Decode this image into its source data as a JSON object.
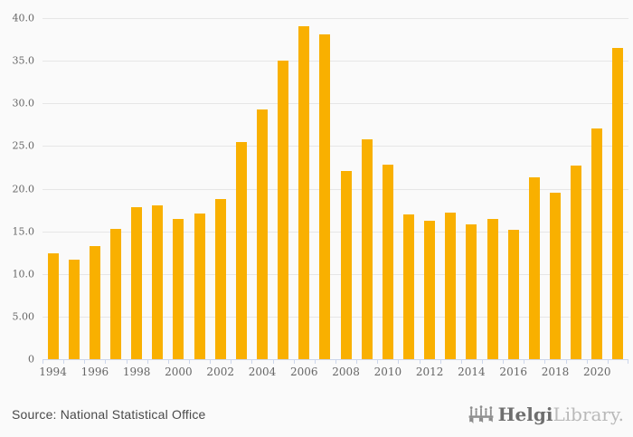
{
  "chart_data": {
    "type": "bar",
    "title": "",
    "xlabel": "",
    "ylabel": "",
    "categories": [
      1994,
      1995,
      1996,
      1997,
      1998,
      1999,
      2000,
      2001,
      2002,
      2003,
      2004,
      2005,
      2006,
      2007,
      2008,
      2009,
      2010,
      2011,
      2012,
      2013,
      2014,
      2015,
      2016,
      2017,
      2018,
      2019,
      2020,
      2021
    ],
    "values": [
      12.4,
      11.7,
      13.3,
      15.3,
      17.8,
      18.0,
      16.5,
      17.1,
      18.8,
      25.5,
      29.3,
      35.0,
      39.0,
      38.1,
      22.1,
      25.8,
      22.8,
      17.0,
      16.2,
      17.2,
      15.8,
      16.4,
      15.2,
      21.3,
      19.5,
      22.7,
      27.1,
      36.5
    ],
    "ylim": [
      0,
      40
    ],
    "yticks": [
      {
        "value": 0,
        "label": "0"
      },
      {
        "value": 5,
        "label": "5.00"
      },
      {
        "value": 10,
        "label": "10.0"
      },
      {
        "value": 15,
        "label": "15.0"
      },
      {
        "value": 20,
        "label": "20.0"
      },
      {
        "value": 25,
        "label": "25.0"
      },
      {
        "value": 30,
        "label": "30.0"
      },
      {
        "value": 35,
        "label": "35.0"
      },
      {
        "value": 40,
        "label": "40.0"
      }
    ],
    "xtick_labels": [
      "1994",
      "1996",
      "1998",
      "2000",
      "2002",
      "2004",
      "2006",
      "2008",
      "2010",
      "2012",
      "2014",
      "2016",
      "2018",
      "2020"
    ],
    "grid": true,
    "legend": "none",
    "colors": {
      "bar": "#f9b000",
      "gridline": "#e6e6e6",
      "axis_line": "#ccd6eb",
      "tick_label": "#666666",
      "background": "#fafafa"
    }
  },
  "footer": {
    "source": "Source: National Statistical Office",
    "logo": {
      "icon": "bridge-icon",
      "brand_bold": "Helgi",
      "brand_light": "Library."
    }
  }
}
